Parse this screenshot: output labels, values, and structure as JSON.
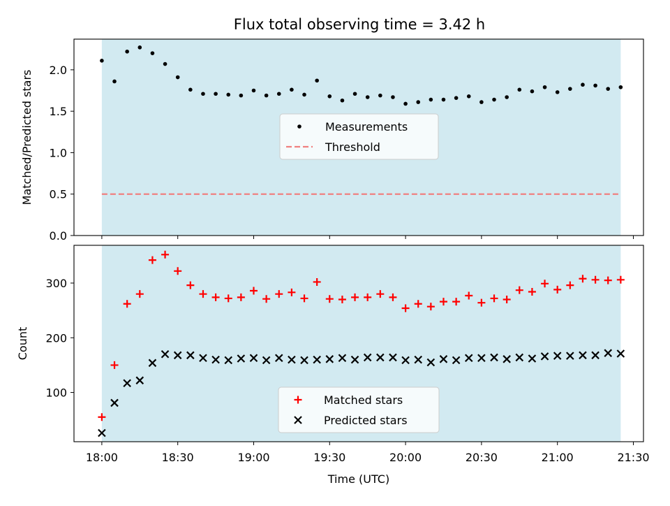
{
  "figure": {
    "title": "Flux total observing time = 3.42 h"
  },
  "chart_data": [
    {
      "type": "scatter",
      "title": "Flux total observing time = 3.42 h",
      "xlabel": "",
      "ylabel": "Matched/Predicted stars",
      "x_ticks": [
        "18:00",
        "18:30",
        "19:00",
        "19:30",
        "20:00",
        "20:30",
        "21:00",
        "21:30"
      ],
      "xlim": [
        "17:49",
        "21:34"
      ],
      "ylim": [
        0,
        2.37
      ],
      "y_ticks": [
        "0.0",
        "0.5",
        "1.0",
        "1.5",
        "2.0"
      ],
      "shaded_span": [
        "18:00",
        "21:25"
      ],
      "shade_color": "#add8e6",
      "legend_position": "center",
      "series": [
        {
          "name": "Measurements",
          "marker": "dot",
          "color": "#000000",
          "x": [
            "18:00",
            "18:05",
            "18:10",
            "18:15",
            "18:20",
            "18:25",
            "18:30",
            "18:35",
            "18:40",
            "18:45",
            "18:50",
            "18:55",
            "19:00",
            "19:05",
            "19:10",
            "19:15",
            "19:20",
            "19:25",
            "19:30",
            "19:35",
            "19:40",
            "19:45",
            "19:50",
            "19:55",
            "20:00",
            "20:05",
            "20:10",
            "20:15",
            "20:20",
            "20:25",
            "20:30",
            "20:35",
            "20:40",
            "20:45",
            "20:50",
            "20:55",
            "21:00",
            "21:05",
            "21:10",
            "21:15",
            "21:20",
            "21:25"
          ],
          "y": [
            2.11,
            1.86,
            2.22,
            2.27,
            2.2,
            2.07,
            1.91,
            1.76,
            1.71,
            1.71,
            1.7,
            1.69,
            1.75,
            1.69,
            1.71,
            1.76,
            1.7,
            1.87,
            1.68,
            1.63,
            1.71,
            1.67,
            1.69,
            1.67,
            1.59,
            1.61,
            1.64,
            1.64,
            1.66,
            1.68,
            1.61,
            1.64,
            1.67,
            1.76,
            1.74,
            1.79,
            1.73,
            1.77,
            1.82,
            1.81,
            1.77,
            1.79
          ]
        },
        {
          "name": "Threshold",
          "style": "dashed",
          "color": "#f08080",
          "x": [
            "18:00",
            "21:25"
          ],
          "y": [
            0.5,
            0.5
          ]
        }
      ]
    },
    {
      "type": "scatter",
      "title": "",
      "xlabel": "Time (UTC)",
      "ylabel": "Count",
      "x_ticks": [
        "18:00",
        "18:30",
        "19:00",
        "19:30",
        "20:00",
        "20:30",
        "21:00",
        "21:30"
      ],
      "xlim": [
        "17:49",
        "21:34"
      ],
      "ylim": [
        10,
        369
      ],
      "y_ticks": [
        "100",
        "200",
        "300"
      ],
      "shaded_span": [
        "18:00",
        "21:25"
      ],
      "shade_color": "#add8e6",
      "legend_position": "lower center",
      "series": [
        {
          "name": "Matched stars",
          "marker": "+",
          "color": "#ff0000",
          "x": [
            "18:00",
            "18:05",
            "18:10",
            "18:15",
            "18:20",
            "18:25",
            "18:30",
            "18:35",
            "18:40",
            "18:45",
            "18:50",
            "18:55",
            "19:00",
            "19:05",
            "19:10",
            "19:15",
            "19:20",
            "19:25",
            "19:30",
            "19:35",
            "19:40",
            "19:45",
            "19:50",
            "19:55",
            "20:00",
            "20:05",
            "20:10",
            "20:15",
            "20:20",
            "20:25",
            "20:30",
            "20:35",
            "20:40",
            "20:45",
            "20:50",
            "20:55",
            "21:00",
            "21:05",
            "21:10",
            "21:15",
            "21:20",
            "21:25"
          ],
          "y": [
            55,
            150,
            262,
            280,
            342,
            352,
            322,
            296,
            280,
            274,
            272,
            274,
            286,
            271,
            280,
            283,
            272,
            302,
            271,
            270,
            274,
            274,
            280,
            274,
            254,
            262,
            257,
            266,
            266,
            277,
            264,
            272,
            270,
            287,
            284,
            299,
            288,
            296,
            308,
            306,
            305,
            306
          ]
        },
        {
          "name": "Predicted stars",
          "marker": "x",
          "color": "#000000",
          "x": [
            "18:00",
            "18:05",
            "18:10",
            "18:15",
            "18:20",
            "18:25",
            "18:30",
            "18:35",
            "18:40",
            "18:45",
            "18:50",
            "18:55",
            "19:00",
            "19:05",
            "19:10",
            "19:15",
            "19:20",
            "19:25",
            "19:30",
            "19:35",
            "19:40",
            "19:45",
            "19:50",
            "19:55",
            "20:00",
            "20:05",
            "20:10",
            "20:15",
            "20:20",
            "20:25",
            "20:30",
            "20:35",
            "20:40",
            "20:45",
            "20:50",
            "20:55",
            "21:00",
            "21:05",
            "21:10",
            "21:15",
            "21:20",
            "21:25"
          ],
          "y": [
            26,
            81,
            117,
            122,
            154,
            170,
            168,
            168,
            163,
            160,
            159,
            162,
            163,
            159,
            163,
            160,
            159,
            160,
            161,
            163,
            160,
            164,
            164,
            164,
            159,
            160,
            155,
            161,
            159,
            163,
            163,
            164,
            161,
            164,
            162,
            166,
            167,
            167,
            168,
            168,
            172,
            171
          ]
        }
      ]
    }
  ]
}
